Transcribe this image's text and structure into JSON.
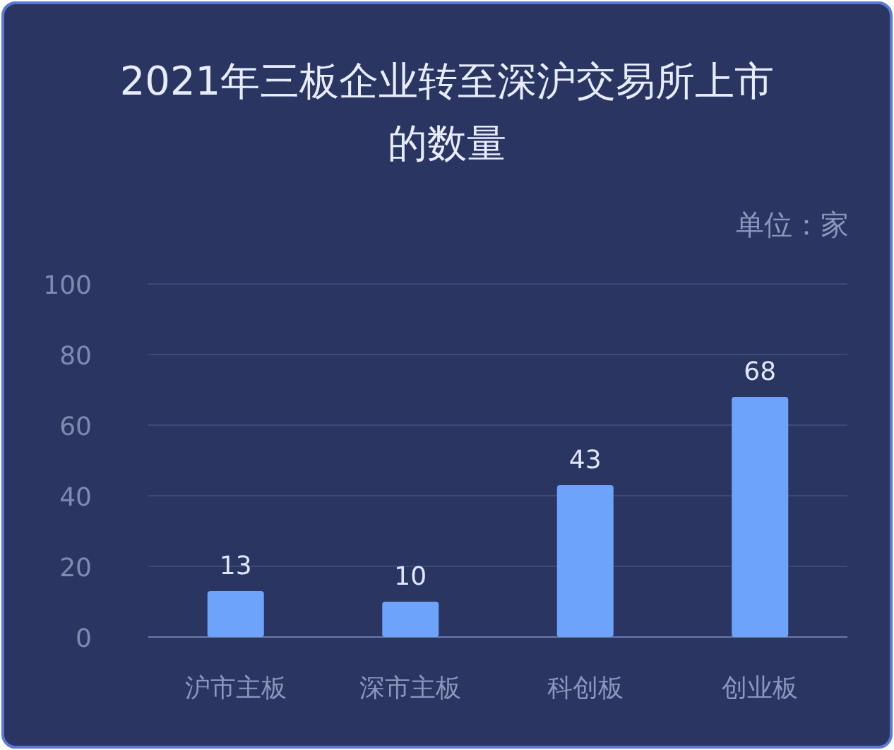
{
  "chart_data": {
    "type": "bar",
    "title": "2021年三板企业转至深沪交易所上市的数量",
    "annotations": [
      "单位：家"
    ],
    "categories": [
      "沪市主板",
      "深市主板",
      "科创板",
      "创业板"
    ],
    "values": [
      13,
      10,
      43,
      68
    ],
    "color": "#6ea3fb",
    "ylim": [
      0,
      100
    ],
    "yticks": [
      0,
      20,
      40,
      60,
      80,
      100
    ],
    "grid": "y",
    "data_labels": true
  }
}
